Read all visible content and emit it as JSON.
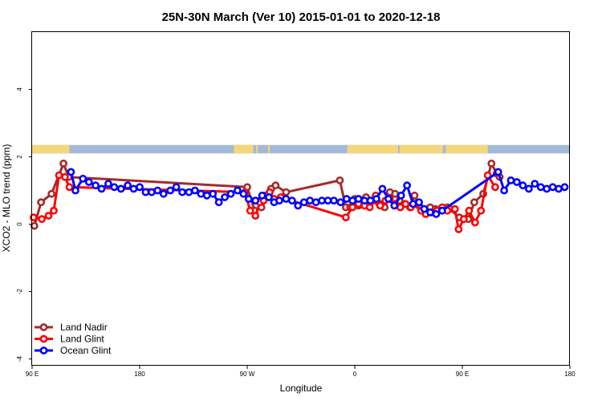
{
  "chart_data": {
    "type": "line",
    "title": "25N-30N March (Ver 10)   2015-01-01 to 2020-12-18",
    "xlabel": "Longitude",
    "ylabel": "XCO2 - MLO trend (ppm)",
    "xlim": [
      90,
      450
    ],
    "ylim": [
      -4.2,
      5.7
    ],
    "x_ticks": [
      {
        "value": 90,
        "label": "90 E"
      },
      {
        "value": 162,
        "label": "180"
      },
      {
        "value": 234,
        "label": "90 W"
      },
      {
        "value": 306,
        "label": "0"
      },
      {
        "value": 378,
        "label": "90 E"
      },
      {
        "value": 450,
        "label": "180"
      }
    ],
    "y_ticks": [
      {
        "value": -4,
        "label": "-4"
      },
      {
        "value": -2,
        "label": "-2"
      },
      {
        "value": 0,
        "label": "0"
      },
      {
        "value": 2,
        "label": "2"
      },
      {
        "value": 4,
        "label": "4"
      }
    ],
    "grid": false,
    "legend_position": "bottom-left",
    "land_ocean_strip": {
      "y_range": [
        2.1,
        2.35
      ],
      "ocean_color": "#a3b9d8",
      "land_color": "#f4d77a",
      "land_segments": [
        [
          90,
          115
        ],
        [
          225,
          238
        ],
        [
          240,
          241
        ],
        [
          248,
          249
        ],
        [
          301,
          335
        ],
        [
          336,
          365
        ],
        [
          367,
          395
        ]
      ]
    },
    "series": [
      {
        "name": "Land Nadir",
        "color": "#a52a2a",
        "x": [
          91.5,
          96,
          103,
          111,
          114.5,
          234,
          239,
          243.5,
          246,
          250,
          253,
          260,
          296,
          300,
          303,
          306,
          308.5,
          311,
          313.5,
          316.5,
          320,
          322.5,
          326,
          329.5,
          333,
          336,
          339,
          343,
          346,
          349,
          352,
          356.5,
          360,
          368,
          369.5,
          376,
          382,
          386,
          392,
          397.5,
          401,
          403
        ],
        "y": [
          -0.05,
          0.65,
          0.9,
          1.8,
          1.4,
          1.1,
          0.4,
          0.5,
          0.85,
          1.05,
          1.15,
          0.95,
          1.3,
          0.5,
          0.5,
          0.75,
          0.55,
          0.7,
          0.8,
          0.7,
          0.85,
          0.6,
          0.5,
          0.95,
          0.9,
          0.7,
          0.6,
          0.5,
          0.85,
          0.55,
          0.45,
          0.5,
          0.45,
          0.5,
          0.45,
          0.2,
          0.15,
          0.65,
          0.9,
          1.8,
          1.5,
          1.4
        ],
        "marker": "circle",
        "draw_order": 0
      },
      {
        "name": "Land Glint",
        "color": "#ff0000",
        "x": [
          91,
          96.5,
          101,
          104.5,
          108,
          112,
          115,
          232.5,
          236,
          239.5,
          242.5,
          245,
          249,
          252,
          256.5,
          300,
          304.5,
          308.5,
          312.5,
          316,
          319.5,
          323,
          326.5,
          329.5,
          333,
          336.5,
          340,
          343.5,
          347,
          350.5,
          353.5,
          357,
          361,
          364.5,
          368,
          373,
          375.5,
          379,
          382.5,
          386.5,
          390.5,
          395,
          400
        ],
        "y": [
          0.2,
          0.15,
          0.25,
          0.4,
          1.45,
          1.4,
          1.1,
          0.95,
          0.4,
          0.25,
          0.65,
          0.7,
          0.95,
          0.75,
          0.8,
          0.2,
          0.5,
          0.6,
          0.55,
          0.5,
          0.7,
          0.55,
          0.7,
          0.75,
          0.6,
          0.5,
          0.6,
          0.5,
          0.6,
          0.4,
          0.3,
          0.35,
          0.4,
          0.5,
          0.4,
          0.45,
          -0.15,
          0.15,
          0.4,
          0.05,
          0.4,
          1.45,
          1.1
        ],
        "marker": "circle",
        "draw_order": 1
      },
      {
        "name": "Ocean Glint",
        "color": "#0000ff",
        "x": [
          116,
          119,
          124,
          128,
          132.5,
          136.5,
          141,
          145,
          149.5,
          154,
          158,
          162,
          166,
          170,
          174,
          178,
          182.5,
          186.5,
          190.5,
          195,
          199,
          203,
          207,
          211,
          215,
          219,
          223,
          227.5,
          231.5,
          235,
          239.5,
          244,
          248.5,
          252,
          255.5,
          260,
          264,
          268,
          272,
          276,
          280,
          284,
          288,
          292,
          296.5,
          300.5,
          304.5,
          308.5,
          312.5,
          316.5,
          320.5,
          324.5,
          328.5,
          332.5,
          337,
          341,
          345,
          349,
          352.5,
          356.5,
          360.5,
          364.5,
          402,
          406,
          410.5,
          414.5,
          418.5,
          422.5,
          426.5,
          430.5,
          434.5,
          438.5,
          442.5,
          446.5
        ],
        "y": [
          1.55,
          1.0,
          1.35,
          1.25,
          1.15,
          1.05,
          1.2,
          1.1,
          1.05,
          1.15,
          1.05,
          1.1,
          0.95,
          0.95,
          1.0,
          0.9,
          1.0,
          1.1,
          0.95,
          0.95,
          1.0,
          0.9,
          0.85,
          0.9,
          0.65,
          0.8,
          0.9,
          1.0,
          0.9,
          0.75,
          0.7,
          0.85,
          0.8,
          0.65,
          0.7,
          0.75,
          0.7,
          0.55,
          0.65,
          0.7,
          0.65,
          0.7,
          0.7,
          0.7,
          0.65,
          0.75,
          0.7,
          0.75,
          0.7,
          0.7,
          0.75,
          1.05,
          0.75,
          0.55,
          0.85,
          1.15,
          0.6,
          0.65,
          0.45,
          0.35,
          0.3,
          0.4,
          1.55,
          1.0,
          1.3,
          1.25,
          1.15,
          1.05,
          1.2,
          1.1,
          1.05,
          1.1,
          1.05,
          1.1
        ],
        "marker": "circle",
        "draw_order": 2
      }
    ]
  }
}
